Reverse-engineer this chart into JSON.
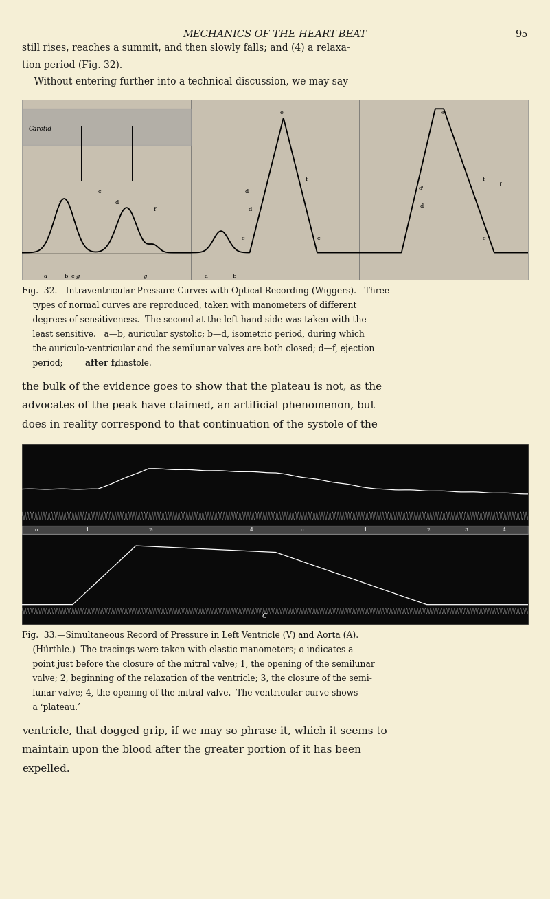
{
  "page_bg": "#f5efd6",
  "page_width": 8.01,
  "page_height": 13.08,
  "dpi": 100,
  "header_title": "MECHANICS OF THE HEART-BEAT",
  "header_page": "95",
  "body_text_color": "#1a1a1a",
  "para1_lines": [
    "still rises, reaches a summit, and then slowly falls; and (4) a relaxa-",
    "tion period (Fig. 32).",
    "    Without entering further into a technical discussion, we may say"
  ],
  "fig32_caption_lines": [
    "Fig.  32.—Intraventricular Pressure Curves with Optical Recording (Wiggers).   Three",
    "    types of normal curves are reproduced, taken with manometers of different",
    "    degrees of sensitiveness.  The second at the left-hand side was taken with the",
    "    least sensitive.   a—b, auricular systolic; b—d, isometric period, during which",
    "    the auriculo-ventricular and the semilunar valves are both closed; d—f, ejection",
    "    period; after f, diastole."
  ],
  "para2_lines": [
    "the bulk of the evidence goes to show that the plateau is not, as the",
    "advocates of the peak have claimed, an artificial phenomenon, but",
    "does in reality correspond to that continuation of the systole of the"
  ],
  "fig33_caption_lines": [
    "Fig.  33.—Simultaneous Record of Pressure in Left Ventricle (V) and Aorta (A).",
    "    (Hürthle.)  The tracings were taken with elastic manometers; o indicates a",
    "    point just before the closure of the mitral valve; 1, the opening of the semilunar",
    "    valve; 2, beginning of the relaxation of the ventricle; 3, the closure of the semi-",
    "    lunar valve; 4, the opening of the mitral valve.  The ventricular curve shows",
    "    a ‘plateau.’"
  ],
  "para3_lines": [
    "ventricle, that dogged grip, if we may so phrase it, which it seems to",
    "maintain upon the blood after the greater portion of it has been",
    "expelled."
  ]
}
